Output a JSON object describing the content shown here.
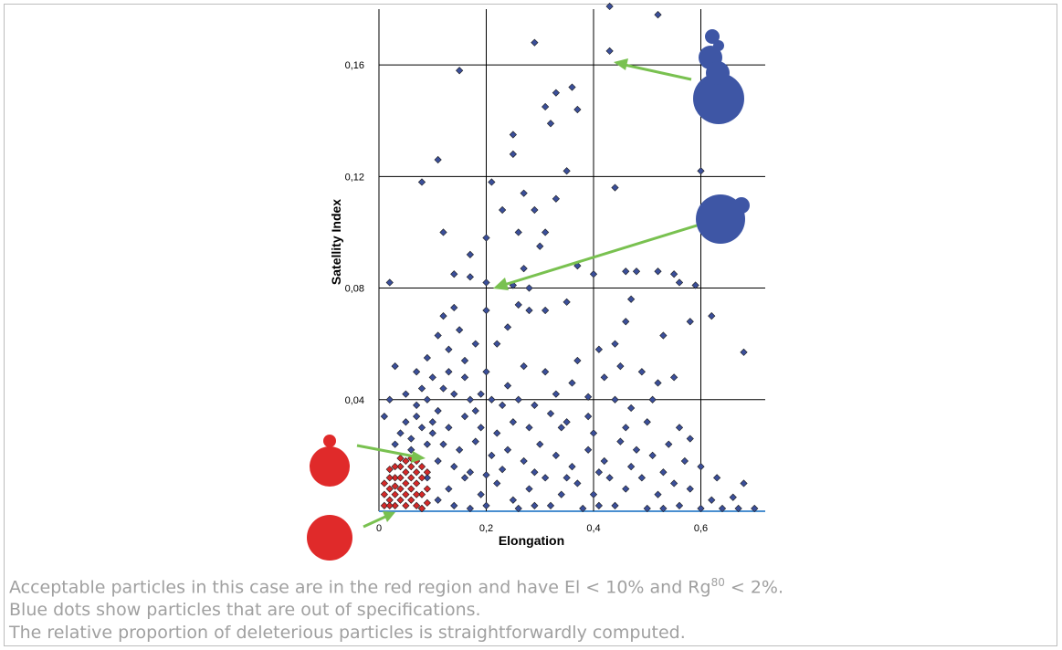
{
  "chart_data": {
    "type": "scatter",
    "xlabel": "Elongation",
    "ylabel": "Satellity Index",
    "xlim": [
      0,
      0.72
    ],
    "ylim": [
      0,
      0.18
    ],
    "x_ticks": [
      "0",
      "0,2",
      "0,4",
      "0,6"
    ],
    "y_ticks": [
      "0,04",
      "0,08",
      "0,12",
      "0,16"
    ],
    "grid": true,
    "series": [
      {
        "color": "#3b4f9a",
        "points": [
          [
            0.43,
            0.181
          ],
          [
            0.52,
            0.178
          ],
          [
            0.43,
            0.165
          ],
          [
            0.29,
            0.168
          ],
          [
            0.15,
            0.158
          ],
          [
            0.08,
            0.118
          ],
          [
            0.11,
            0.126
          ],
          [
            0.44,
            0.116
          ],
          [
            0.6,
            0.122
          ],
          [
            0.02,
            0.082
          ],
          [
            0.37,
            0.144
          ],
          [
            0.36,
            0.152
          ],
          [
            0.33,
            0.15
          ],
          [
            0.31,
            0.145
          ],
          [
            0.25,
            0.135
          ],
          [
            0.25,
            0.128
          ],
          [
            0.32,
            0.139
          ],
          [
            0.21,
            0.118
          ],
          [
            0.35,
            0.122
          ],
          [
            0.27,
            0.114
          ],
          [
            0.29,
            0.108
          ],
          [
            0.33,
            0.112
          ],
          [
            0.12,
            0.1
          ],
          [
            0.17,
            0.092
          ],
          [
            0.2,
            0.098
          ],
          [
            0.23,
            0.108
          ],
          [
            0.26,
            0.1
          ],
          [
            0.3,
            0.095
          ],
          [
            0.31,
            0.1
          ],
          [
            0.14,
            0.085
          ],
          [
            0.17,
            0.084
          ],
          [
            0.2,
            0.082
          ],
          [
            0.25,
            0.081
          ],
          [
            0.27,
            0.087
          ],
          [
            0.28,
            0.08
          ],
          [
            0.37,
            0.088
          ],
          [
            0.4,
            0.085
          ],
          [
            0.46,
            0.086
          ],
          [
            0.48,
            0.086
          ],
          [
            0.52,
            0.086
          ],
          [
            0.55,
            0.085
          ],
          [
            0.59,
            0.081
          ],
          [
            0.56,
            0.082
          ],
          [
            0.47,
            0.076
          ],
          [
            0.35,
            0.075
          ],
          [
            0.31,
            0.072
          ],
          [
            0.62,
            0.07
          ],
          [
            0.68,
            0.057
          ],
          [
            0.58,
            0.068
          ],
          [
            0.46,
            0.068
          ],
          [
            0.53,
            0.063
          ],
          [
            0.44,
            0.06
          ],
          [
            0.41,
            0.058
          ],
          [
            0.37,
            0.054
          ],
          [
            0.31,
            0.05
          ],
          [
            0.27,
            0.052
          ],
          [
            0.24,
            0.045
          ],
          [
            0.2,
            0.05
          ],
          [
            0.22,
            0.06
          ],
          [
            0.18,
            0.06
          ],
          [
            0.15,
            0.065
          ],
          [
            0.14,
            0.073
          ],
          [
            0.12,
            0.07
          ],
          [
            0.11,
            0.063
          ],
          [
            0.13,
            0.058
          ],
          [
            0.09,
            0.055
          ],
          [
            0.07,
            0.05
          ],
          [
            0.08,
            0.044
          ],
          [
            0.1,
            0.048
          ],
          [
            0.13,
            0.05
          ],
          [
            0.16,
            0.048
          ],
          [
            0.17,
            0.04
          ],
          [
            0.19,
            0.042
          ],
          [
            0.21,
            0.04
          ],
          [
            0.23,
            0.038
          ],
          [
            0.26,
            0.04
          ],
          [
            0.29,
            0.038
          ],
          [
            0.33,
            0.042
          ],
          [
            0.36,
            0.046
          ],
          [
            0.39,
            0.041
          ],
          [
            0.42,
            0.048
          ],
          [
            0.45,
            0.052
          ],
          [
            0.49,
            0.05
          ],
          [
            0.52,
            0.046
          ],
          [
            0.55,
            0.048
          ],
          [
            0.51,
            0.04
          ],
          [
            0.47,
            0.037
          ],
          [
            0.44,
            0.04
          ],
          [
            0.39,
            0.034
          ],
          [
            0.35,
            0.032
          ],
          [
            0.32,
            0.035
          ],
          [
            0.28,
            0.03
          ],
          [
            0.25,
            0.032
          ],
          [
            0.22,
            0.028
          ],
          [
            0.19,
            0.03
          ],
          [
            0.16,
            0.034
          ],
          [
            0.13,
            0.03
          ],
          [
            0.11,
            0.036
          ],
          [
            0.09,
            0.04
          ],
          [
            0.07,
            0.038
          ],
          [
            0.05,
            0.032
          ],
          [
            0.04,
            0.028
          ],
          [
            0.03,
            0.024
          ],
          [
            0.06,
            0.026
          ],
          [
            0.08,
            0.03
          ],
          [
            0.1,
            0.028
          ],
          [
            0.12,
            0.024
          ],
          [
            0.15,
            0.022
          ],
          [
            0.18,
            0.025
          ],
          [
            0.21,
            0.02
          ],
          [
            0.24,
            0.022
          ],
          [
            0.27,
            0.018
          ],
          [
            0.3,
            0.024
          ],
          [
            0.33,
            0.02
          ],
          [
            0.36,
            0.016
          ],
          [
            0.39,
            0.022
          ],
          [
            0.42,
            0.018
          ],
          [
            0.45,
            0.025
          ],
          [
            0.48,
            0.022
          ],
          [
            0.51,
            0.02
          ],
          [
            0.54,
            0.024
          ],
          [
            0.57,
            0.018
          ],
          [
            0.6,
            0.016
          ],
          [
            0.63,
            0.012
          ],
          [
            0.68,
            0.01
          ],
          [
            0.66,
            0.005
          ],
          [
            0.62,
            0.004
          ],
          [
            0.58,
            0.008
          ],
          [
            0.55,
            0.01
          ],
          [
            0.52,
            0.006
          ],
          [
            0.49,
            0.012
          ],
          [
            0.46,
            0.008
          ],
          [
            0.43,
            0.012
          ],
          [
            0.4,
            0.006
          ],
          [
            0.37,
            0.01
          ],
          [
            0.34,
            0.006
          ],
          [
            0.31,
            0.012
          ],
          [
            0.28,
            0.008
          ],
          [
            0.25,
            0.004
          ],
          [
            0.22,
            0.01
          ],
          [
            0.19,
            0.006
          ],
          [
            0.16,
            0.012
          ],
          [
            0.13,
            0.008
          ],
          [
            0.11,
            0.004
          ],
          [
            0.09,
            0.012
          ],
          [
            0.14,
            0.002
          ],
          [
            0.2,
            0.002
          ],
          [
            0.26,
            0.001
          ],
          [
            0.32,
            0.002
          ],
          [
            0.38,
            0.001
          ],
          [
            0.44,
            0.002
          ],
          [
            0.5,
            0.001
          ],
          [
            0.56,
            0.002
          ],
          [
            0.6,
            0.001
          ],
          [
            0.67,
            0.001
          ],
          [
            0.7,
            0.001
          ],
          [
            0.64,
            0.001
          ],
          [
            0.53,
            0.001
          ],
          [
            0.41,
            0.002
          ],
          [
            0.29,
            0.002
          ],
          [
            0.17,
            0.001
          ],
          [
            0.08,
            0.001
          ],
          [
            0.06,
            0.022
          ],
          [
            0.09,
            0.024
          ],
          [
            0.11,
            0.018
          ],
          [
            0.14,
            0.016
          ],
          [
            0.17,
            0.014
          ],
          [
            0.2,
            0.013
          ],
          [
            0.23,
            0.015
          ],
          [
            0.07,
            0.034
          ],
          [
            0.1,
            0.032
          ],
          [
            0.12,
            0.044
          ],
          [
            0.14,
            0.042
          ],
          [
            0.16,
            0.054
          ],
          [
            0.18,
            0.036
          ],
          [
            0.24,
            0.066
          ],
          [
            0.26,
            0.074
          ],
          [
            0.28,
            0.072
          ],
          [
            0.2,
            0.072
          ],
          [
            0.05,
            0.042
          ],
          [
            0.01,
            0.034
          ],
          [
            0.03,
            0.052
          ],
          [
            0.02,
            0.04
          ],
          [
            0.34,
            0.03
          ],
          [
            0.4,
            0.028
          ],
          [
            0.46,
            0.03
          ],
          [
            0.5,
            0.032
          ],
          [
            0.56,
            0.03
          ],
          [
            0.58,
            0.026
          ],
          [
            0.53,
            0.014
          ],
          [
            0.47,
            0.016
          ],
          [
            0.41,
            0.014
          ],
          [
            0.35,
            0.012
          ],
          [
            0.29,
            0.014
          ]
        ]
      },
      {
        "color": "#d42a2a",
        "points": [
          [
            0.01,
            0.002
          ],
          [
            0.02,
            0.004
          ],
          [
            0.03,
            0.006
          ],
          [
            0.04,
            0.008
          ],
          [
            0.05,
            0.01
          ],
          [
            0.06,
            0.012
          ],
          [
            0.07,
            0.014
          ],
          [
            0.02,
            0.008
          ],
          [
            0.03,
            0.012
          ],
          [
            0.04,
            0.016
          ],
          [
            0.05,
            0.018
          ],
          [
            0.06,
            0.016
          ],
          [
            0.07,
            0.01
          ],
          [
            0.08,
            0.006
          ],
          [
            0.09,
            0.008
          ],
          [
            0.01,
            0.006
          ],
          [
            0.02,
            0.012
          ],
          [
            0.03,
            0.016
          ],
          [
            0.04,
            0.004
          ],
          [
            0.05,
            0.006
          ],
          [
            0.06,
            0.004
          ],
          [
            0.07,
            0.002
          ],
          [
            0.08,
            0.012
          ],
          [
            0.09,
            0.014
          ],
          [
            0.03,
            0.002
          ],
          [
            0.05,
            0.002
          ],
          [
            0.06,
            0.008
          ],
          [
            0.07,
            0.006
          ],
          [
            0.04,
            0.012
          ],
          [
            0.02,
            0.002
          ],
          [
            0.01,
            0.01
          ],
          [
            0.03,
            0.009
          ],
          [
            0.05,
            0.014
          ],
          [
            0.06,
            0.019
          ],
          [
            0.08,
            0.016
          ],
          [
            0.04,
            0.019
          ],
          [
            0.07,
            0.018
          ],
          [
            0.02,
            0.015
          ],
          [
            0.09,
            0.003
          ],
          [
            0.08,
            0.001
          ]
        ]
      }
    ]
  },
  "caption": {
    "line1_before": "Acceptable particles in this case are in the red region and have El < 10% and Rg",
    "line1_sup": "80",
    "line1_after": " < 2%.",
    "line2": "Blue dots show particles that are out of specifications.",
    "line3": "The relative proportion of deleterious particles is straightforwardly computed."
  }
}
